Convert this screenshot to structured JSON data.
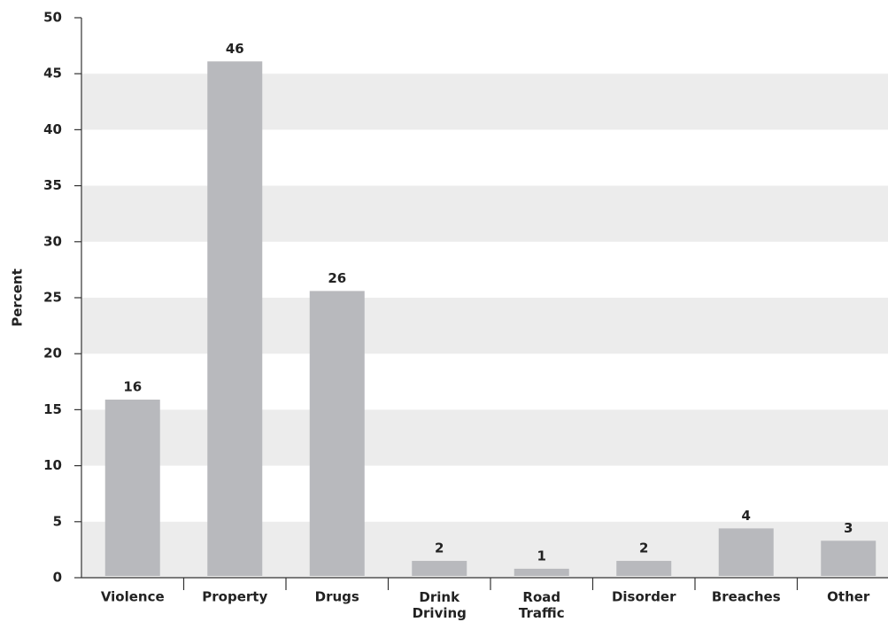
{
  "chart_data": {
    "type": "bar",
    "y_label": "Percent",
    "categories": [
      "Violence",
      "Property",
      "Drugs",
      "Drink Driving",
      "Road Traffic",
      "Disorder",
      "Breaches",
      "Other"
    ],
    "values": [
      15.9,
      46.1,
      25.6,
      1.5,
      0.8,
      1.5,
      4.4,
      3.3
    ],
    "value_labels": [
      "16",
      "46",
      "26",
      "2",
      "1",
      "2",
      "4",
      "3"
    ],
    "color": "#b8b9bd",
    "stripe_color": "#ececec",
    "ylim": [
      0,
      50
    ],
    "yticks": [
      0,
      5,
      10,
      15,
      20,
      25,
      30,
      35,
      40,
      45,
      50
    ],
    "grid": true
  }
}
